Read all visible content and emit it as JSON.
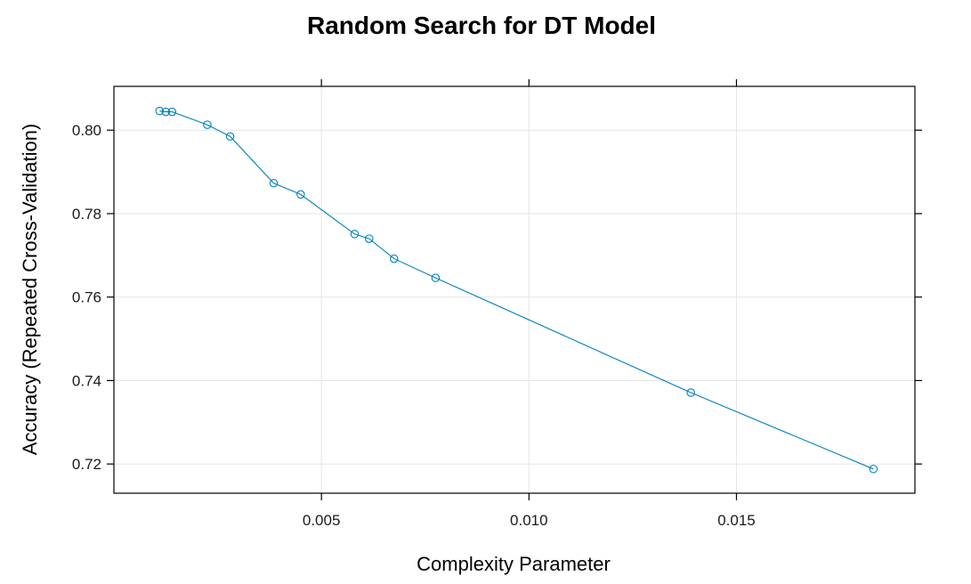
{
  "chart_data": {
    "type": "line",
    "title": "Random Search for DT Model",
    "xlabel": "Complexity Parameter",
    "ylabel": "Accuracy (Repeated Cross-Validation)",
    "xlim": [
      0.0,
      0.0193
    ],
    "ylim": [
      0.713,
      0.8105
    ],
    "x_ticks": [
      0.005,
      0.01,
      0.015
    ],
    "x_tick_labels": [
      "0.005",
      "0.010",
      "0.015"
    ],
    "y_ticks": [
      0.72,
      0.74,
      0.76,
      0.78,
      0.8
    ],
    "y_tick_labels": [
      "0.72",
      "0.74",
      "0.76",
      "0.78",
      "0.80"
    ],
    "grid": true,
    "series": [
      {
        "color": "#0080c0",
        "marker": "open-circle",
        "x": [
          0.0011,
          0.00125,
          0.0014,
          0.00225,
          0.0028,
          0.00385,
          0.0045,
          0.0058,
          0.00615,
          0.00675,
          0.00775,
          0.0139,
          0.0183
        ],
        "y": [
          0.8046,
          0.8044,
          0.8044,
          0.8013,
          0.7985,
          0.7873,
          0.7846,
          0.7751,
          0.774,
          0.7692,
          0.7646,
          0.7371,
          0.7188
        ]
      }
    ]
  }
}
